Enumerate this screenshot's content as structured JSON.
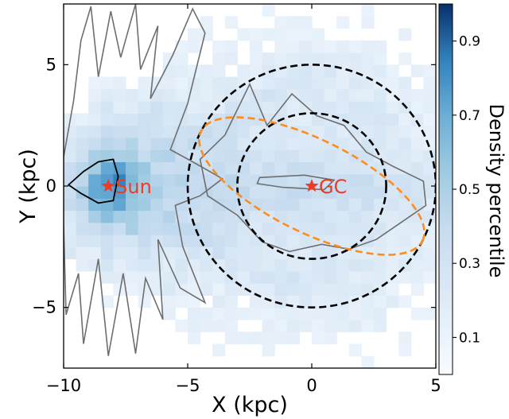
{
  "chart_data": {
    "type": "heatmap",
    "xlabel": "X (kpc)",
    "ylabel": "Y (kpc)",
    "xlim": [
      -10,
      5
    ],
    "ylim": [
      -7.5,
      7.5
    ],
    "x_ticks": [
      "−10",
      "−5",
      "0",
      "5"
    ],
    "x_tick_values": [
      -10,
      -5,
      0,
      5
    ],
    "y_ticks": [
      "5",
      "0",
      "−5"
    ],
    "y_tick_values": [
      5,
      0,
      -5
    ],
    "colorbar": {
      "label": "Density percentile",
      "range": [
        0,
        1
      ],
      "ticks": [
        "0.9",
        "0.7",
        "0.5",
        "0.3",
        "0.1"
      ],
      "tick_values": [
        0.9,
        0.7,
        0.5,
        0.3,
        0.1
      ],
      "colormap": "Blues"
    },
    "markers": [
      {
        "label": "Sun",
        "x": -8.2,
        "y": 0,
        "color": "#ee3b26"
      },
      {
        "label": "GC",
        "x": 0,
        "y": 0,
        "color": "#ee3b26"
      }
    ],
    "circles": [
      {
        "center": [
          0,
          0
        ],
        "radius": 3,
        "color": "#000000",
        "style": "dashed"
      },
      {
        "center": [
          0,
          0
        ],
        "radius": 5,
        "color": "#000000",
        "style": "dashed"
      }
    ],
    "ellipse": {
      "center": [
        0,
        0
      ],
      "semi_major": 5,
      "semi_minor": 1.9,
      "angle_deg": -27,
      "color": "#ff8c1a",
      "style": "dashed"
    },
    "contours": {
      "color_outer": "#6e6e6e",
      "color_inner": "#000000"
    }
  }
}
